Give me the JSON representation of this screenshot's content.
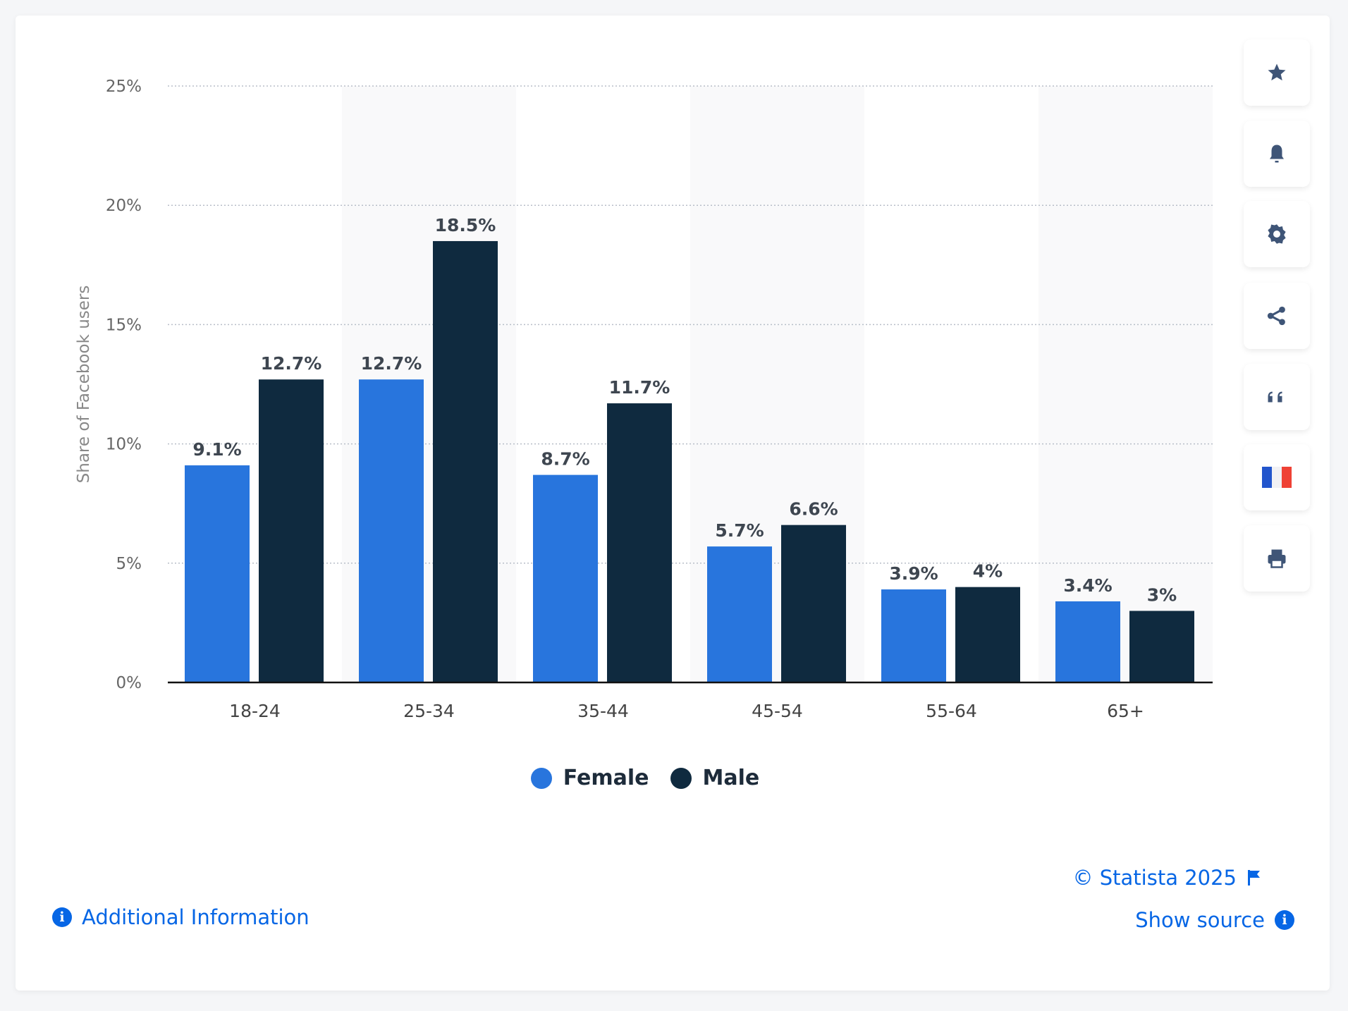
{
  "chart_data": {
    "type": "bar",
    "categories": [
      "18-24",
      "25-34",
      "35-44",
      "45-54",
      "55-64",
      "65+"
    ],
    "series": [
      {
        "name": "Female",
        "values": [
          9.1,
          12.7,
          8.7,
          5.7,
          3.9,
          3.4
        ],
        "labels": [
          "9.1%",
          "12.7%",
          "8.7%",
          "5.7%",
          "3.9%",
          "3.4%"
        ],
        "color": "#2875dd"
      },
      {
        "name": "Male",
        "values": [
          12.7,
          18.5,
          11.7,
          6.6,
          4,
          3
        ],
        "labels": [
          "12.7%",
          "18.5%",
          "11.7%",
          "6.6%",
          "4%",
          "3%"
        ],
        "color": "#0f2a3f"
      }
    ],
    "ylabel": "Share of Facebook users",
    "xlabel": "",
    "ylim": [
      0,
      25
    ],
    "yticks": [
      0,
      5,
      10,
      15,
      20,
      25
    ],
    "ytick_labels": [
      "0%",
      "5%",
      "10%",
      "15%",
      "20%",
      "25%"
    ],
    "grid": true,
    "legend_position": "bottom"
  },
  "legend": {
    "female": "Female",
    "male": "Male"
  },
  "sidebar": {
    "icons": [
      "star-icon",
      "bell-icon",
      "gear-icon",
      "share-icon",
      "quote-icon",
      "french-flag-icon",
      "print-icon"
    ]
  },
  "footer": {
    "copyright": "© Statista 2025",
    "show_source": "Show source",
    "additional_info": "Additional Information",
    "info_glyph": "i"
  },
  "colors": {
    "female": "#2875dd",
    "male": "#0f2a3f",
    "link": "#0666e5"
  }
}
